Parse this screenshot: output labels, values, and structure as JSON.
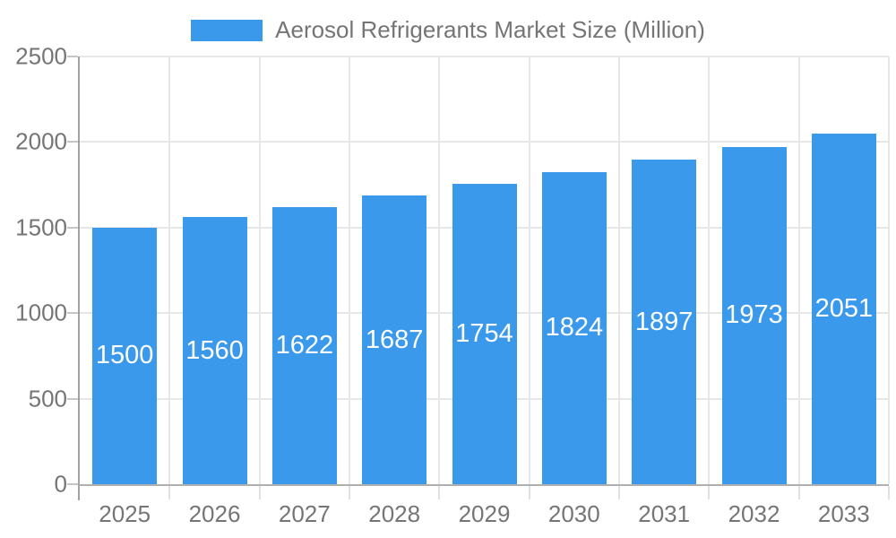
{
  "chart_data": {
    "type": "bar",
    "title": "Aerosol Refrigerants Market Size (Million)",
    "categories": [
      "2025",
      "2026",
      "2027",
      "2028",
      "2029",
      "2030",
      "2031",
      "2032",
      "2033"
    ],
    "values": [
      1500,
      1560,
      1622,
      1687,
      1754,
      1824,
      1897,
      1973,
      2051
    ],
    "xlabel": "",
    "ylabel": "",
    "ylim": [
      0,
      2500
    ],
    "yticks": [
      0,
      500,
      1000,
      1500,
      2000,
      2500
    ],
    "grid": "on",
    "legend_position": "top-center",
    "bar_color": "#3b99ec",
    "bar_label_color": "#ffffff",
    "axis_text_color": "#757575",
    "grid_color": "#e7e7e7",
    "axis_line_color": "#a2a2a2",
    "background_color": "#ffffff"
  }
}
